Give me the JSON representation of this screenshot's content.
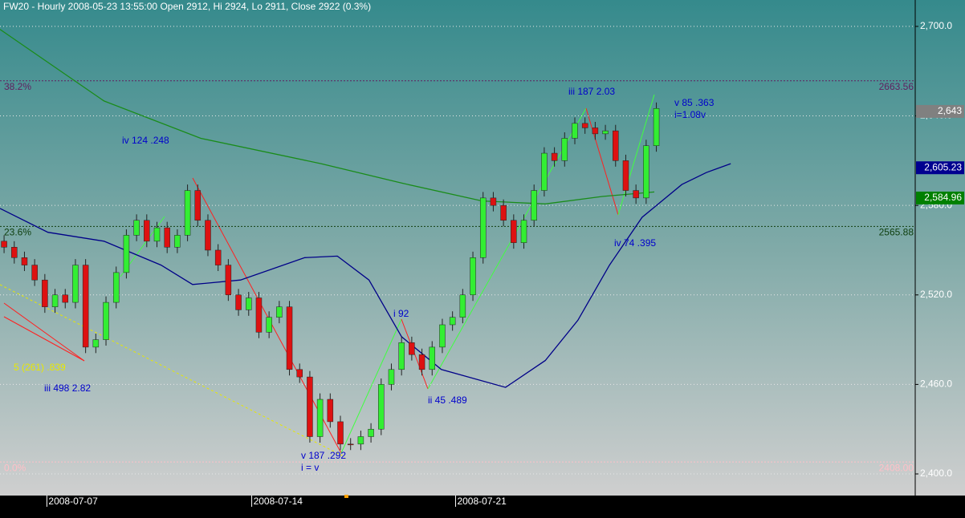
{
  "chart_data": {
    "type": "candlestick",
    "title": "FW20 - Hourly 2008-05-23 13:55:00 Open 2912, Hi 2924, Lo 2911, Close 2922 (0.3%)",
    "x": [
      0,
      1,
      2,
      3,
      4,
      5,
      6,
      7,
      8,
      9,
      10,
      11,
      12,
      13,
      14,
      15,
      16,
      17,
      18,
      19,
      20,
      21,
      22,
      23,
      24,
      25,
      26,
      27,
      28,
      29,
      30,
      31,
      32,
      33,
      34,
      35,
      36,
      37,
      38,
      39,
      40,
      41,
      42,
      43,
      44,
      45,
      46,
      47,
      48,
      49,
      50,
      51,
      52,
      53,
      54,
      55,
      56,
      57,
      58,
      59,
      60,
      61,
      62,
      63,
      64
    ],
    "open": [
      2556,
      2552,
      2545,
      2540,
      2530,
      2512,
      2520,
      2515,
      2540,
      2485,
      2490,
      2515,
      2535,
      2560,
      2570,
      2556,
      2565,
      2552,
      2560,
      2590,
      2570,
      2550,
      2540,
      2520,
      2510,
      2518,
      2495,
      2505,
      2512,
      2470,
      2465,
      2425,
      2450,
      2435,
      2420,
      2420,
      2425,
      2430,
      2460,
      2470,
      2488,
      2480,
      2470,
      2485,
      2500,
      2505,
      2520,
      2545,
      2585,
      2580,
      2570,
      2555,
      2570,
      2590,
      2615,
      2610,
      2625,
      2635,
      2632,
      2628,
      2630,
      2610,
      2590,
      2585,
      2620
    ],
    "high": [
      2560,
      2556,
      2549,
      2544,
      2534,
      2524,
      2524,
      2544,
      2544,
      2494,
      2519,
      2539,
      2564,
      2574,
      2574,
      2569,
      2569,
      2564,
      2594,
      2594,
      2574,
      2554,
      2544,
      2524,
      2522,
      2522,
      2509,
      2516,
      2516,
      2474,
      2469,
      2454,
      2454,
      2439,
      2424,
      2429,
      2434,
      2464,
      2474,
      2492,
      2492,
      2484,
      2489,
      2504,
      2509,
      2524,
      2549,
      2589,
      2589,
      2584,
      2574,
      2574,
      2594,
      2619,
      2619,
      2629,
      2639,
      2639,
      2636,
      2634,
      2634,
      2614,
      2594,
      2624,
      2649
    ],
    "low": [
      2548,
      2541,
      2536,
      2526,
      2508,
      2508,
      2511,
      2511,
      2481,
      2481,
      2486,
      2511,
      2531,
      2556,
      2552,
      2552,
      2548,
      2548,
      2556,
      2566,
      2546,
      2536,
      2516,
      2506,
      2506,
      2491,
      2491,
      2501,
      2466,
      2461,
      2421,
      2421,
      2431,
      2416,
      2416,
      2416,
      2421,
      2426,
      2456,
      2466,
      2476,
      2466,
      2466,
      2481,
      2496,
      2501,
      2516,
      2541,
      2576,
      2566,
      2551,
      2551,
      2566,
      2586,
      2606,
      2606,
      2621,
      2628,
      2624,
      2624,
      2606,
      2586,
      2581,
      2581,
      2616
    ],
    "close": [
      2552,
      2545,
      2540,
      2530,
      2512,
      2520,
      2515,
      2540,
      2485,
      2490,
      2515,
      2535,
      2560,
      2570,
      2556,
      2565,
      2552,
      2560,
      2590,
      2570,
      2550,
      2540,
      2520,
      2510,
      2518,
      2495,
      2505,
      2512,
      2470,
      2465,
      2425,
      2450,
      2435,
      2420,
      2420,
      2425,
      2430,
      2460,
      2470,
      2488,
      2480,
      2470,
      2485,
      2500,
      2505,
      2520,
      2545,
      2585,
      2580,
      2570,
      2555,
      2570,
      2590,
      2615,
      2610,
      2625,
      2635,
      2632,
      2628,
      2630,
      2610,
      2590,
      2585,
      2620,
      2645
    ],
    "up_color": "#33ee33",
    "down_color": "#dd1111",
    "lines": [
      {
        "color": "#1a8c1a",
        "x": [
          -0.4,
          9.8,
          19.3,
          31.1,
          39,
          46.9,
          53.1,
          58.7,
          63.8
        ],
        "values": [
          2698,
          2650,
          2625,
          2608,
          2595,
          2583,
          2581,
          2586,
          2589
        ]
      },
      {
        "color": "#000088",
        "x": [
          -0.4,
          4.3,
          9.8,
          15.4,
          18.5,
          23.2,
          29.5,
          32.7,
          35.8,
          39,
          42.9,
          49.2,
          53.1,
          56.3,
          59.4,
          62.6,
          66.5,
          68.9,
          71.3
        ],
        "values": [
          2578,
          2562,
          2556,
          2540,
          2527,
          2530,
          2545,
          2546,
          2530,
          2492,
          2470,
          2458,
          2476,
          2503,
          2540,
          2572,
          2594,
          2602,
          2608
        ]
      }
    ],
    "levels": [
      {
        "name": "38.2%",
        "value": 2663.56,
        "label": "2663.56",
        "color": "#602060"
      },
      {
        "name": "23.6%",
        "value": 2565.88,
        "label": "2565.88",
        "color": "#104010"
      },
      {
        "name": "0.0%",
        "value": 2408,
        "label": "2408.00",
        "color": "#ffc0c8"
      }
    ],
    "markers": [
      {
        "value": 2643,
        "label": "2,643",
        "color": "#808080"
      },
      {
        "value": 2605.23,
        "label": "2,605.23",
        "color": "#000090"
      },
      {
        "value": 2584.96,
        "label": "2,584.96",
        "color": "#008000"
      }
    ],
    "annotations": [
      {
        "text": "iv 124 .248",
        "color": "#0000cc"
      },
      {
        "text": "iii 187 2.03",
        "color": "#0000cc"
      },
      {
        "text": "v 85 .363",
        "color": "#0000cc"
      },
      {
        "text": "i=1.08v",
        "color": "#0000cc"
      },
      {
        "text": "iv 74 .395",
        "color": "#0000cc"
      },
      {
        "text": "i 92",
        "color": "#0000cc"
      },
      {
        "text": "ii 45 .489",
        "color": "#0000cc"
      },
      {
        "text": "v 187 .292",
        "color": "#0000cc"
      },
      {
        "text": "i = v",
        "color": "#0000cc"
      },
      {
        "text": "5 (261) .839",
        "color": "#e8e800"
      },
      {
        "text": "iii 498 2.82",
        "color": "#0000cc"
      }
    ],
    "xlim": [
      -0.4,
      89.4
    ],
    "xticks": [
      {
        "value": 4.2,
        "label": "2008-07-07"
      },
      {
        "value": 24.3,
        "label": "2008-07-14"
      },
      {
        "value": 44.3,
        "label": "2008-07-21"
      }
    ],
    "ylim": [
      2385.5,
      2717.7
    ],
    "yticks": [
      {
        "value": 2400,
        "label": "2,400.0"
      },
      {
        "value": 2460,
        "label": "2,460.0"
      },
      {
        "value": 2520,
        "label": "2,520.0"
      },
      {
        "value": 2580,
        "label": "2,580.0"
      },
      {
        "value": 2640,
        "label": "2,640.0"
      },
      {
        "value": 2700,
        "label": "2,700.0"
      }
    ],
    "grid": true
  }
}
